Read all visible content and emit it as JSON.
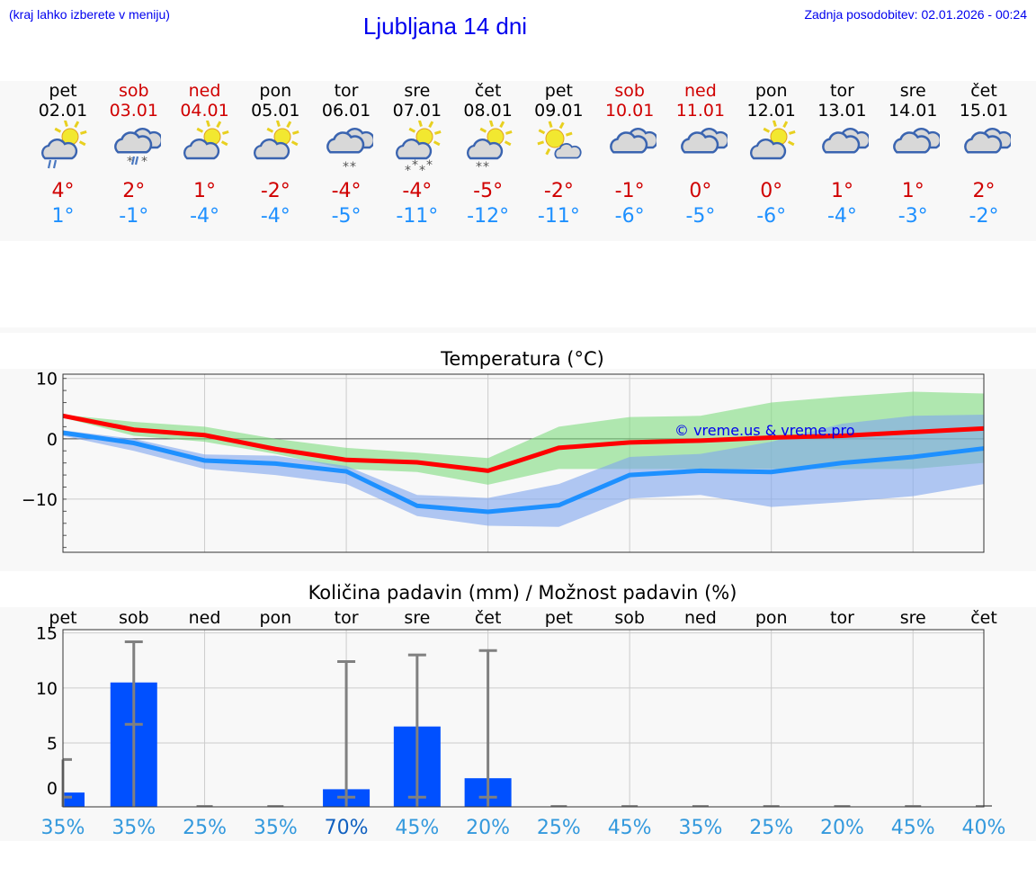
{
  "header": {
    "hint": "(kraj lahko izberete v meniju)",
    "title": "Ljubljana 14 dni",
    "updated": "Zadnja posodobitev: 02.01.2026 - 00:24"
  },
  "days": [
    {
      "name": "pet",
      "date": "02.01",
      "weekend": false,
      "icon": "sun-cloud-rain",
      "max": "4°",
      "min": "1°"
    },
    {
      "name": "sob",
      "date": "03.01",
      "weekend": true,
      "icon": "cloud-sleet",
      "max": "2°",
      "min": "-1°"
    },
    {
      "name": "ned",
      "date": "04.01",
      "weekend": true,
      "icon": "sun-cloud",
      "max": "1°",
      "min": "-4°"
    },
    {
      "name": "pon",
      "date": "05.01",
      "weekend": false,
      "icon": "sun-cloud",
      "max": "-2°",
      "min": "-4°"
    },
    {
      "name": "tor",
      "date": "06.01",
      "weekend": false,
      "icon": "cloud-snow",
      "max": "-4°",
      "min": "-5°"
    },
    {
      "name": "sre",
      "date": "07.01",
      "weekend": false,
      "icon": "sun-cloud-heavy-snow",
      "max": "-4°",
      "min": "-11°"
    },
    {
      "name": "čet",
      "date": "08.01",
      "weekend": false,
      "icon": "sun-cloud-snow",
      "max": "-5°",
      "min": "-12°"
    },
    {
      "name": "pet",
      "date": "09.01",
      "weekend": false,
      "icon": "sun-small-cloud",
      "max": "-2°",
      "min": "-11°"
    },
    {
      "name": "sob",
      "date": "10.01",
      "weekend": true,
      "icon": "cloud",
      "max": "-1°",
      "min": "-6°"
    },
    {
      "name": "ned",
      "date": "11.01",
      "weekend": true,
      "icon": "cloud",
      "max": "0°",
      "min": "-5°"
    },
    {
      "name": "pon",
      "date": "12.01",
      "weekend": false,
      "icon": "sun-cloud",
      "max": "0°",
      "min": "-6°"
    },
    {
      "name": "tor",
      "date": "13.01",
      "weekend": false,
      "icon": "cloud",
      "max": "1°",
      "min": "-4°"
    },
    {
      "name": "sre",
      "date": "14.01",
      "weekend": false,
      "icon": "cloud",
      "max": "1°",
      "min": "-3°"
    },
    {
      "name": "čet",
      "date": "15.01",
      "weekend": false,
      "icon": "cloud",
      "max": "2°",
      "min": "-2°"
    }
  ],
  "colors": {
    "max": "#ff0000",
    "min": "#1e90ff",
    "max_band": "#7fdc7f",
    "min_band": "#7fa5ee",
    "bar": "#0050ff",
    "errorbar": "#808080",
    "weekend": "#d00000",
    "chance": "#3399dd",
    "chance_high": "#1060c0"
  },
  "chart_data": [
    {
      "type": "line",
      "title": "Temperatura (°C)",
      "ylim": [
        -18.8,
        10.7
      ],
      "yticks": [
        "10",
        "0",
        "−10"
      ],
      "ytick_values": [
        10,
        0,
        -10
      ],
      "grid": true,
      "watermark": "© vreme.us & vreme.pro",
      "series": [
        {
          "key": "max",
          "values": [
            3.8,
            1.5,
            0.6,
            -1.7,
            -3.5,
            -3.9,
            -5.3,
            -1.5,
            -0.6,
            -0.3,
            0.2,
            0.5,
            1.1,
            1.7
          ],
          "band_upper": [
            4,
            2.8,
            2,
            0,
            -1.5,
            -2.3,
            -3.2,
            2,
            3.6,
            3.8,
            6,
            7,
            7.8,
            7.5
          ],
          "band_lower": [
            3.5,
            0.5,
            -0.5,
            -2.5,
            -5,
            -5.5,
            -7.6,
            -5,
            -5,
            -5,
            -5,
            -5,
            -5,
            -4
          ]
        },
        {
          "key": "min",
          "values": [
            1,
            -0.7,
            -3.6,
            -4.1,
            -5.4,
            -11.1,
            -12.1,
            -11,
            -6,
            -5.3,
            -5.5,
            -4,
            -3,
            -1.6
          ],
          "band_upper": [
            1.4,
            0,
            -2.6,
            -2.8,
            -4.5,
            -9.3,
            -9.8,
            -7.5,
            -3,
            -2.5,
            -0.5,
            2.5,
            3.8,
            4
          ],
          "band_lower": [
            0.5,
            -2,
            -5,
            -6,
            -7.5,
            -12.8,
            -14.4,
            -14.6,
            -9.9,
            -9.3,
            -11.3,
            -10.5,
            -9.5,
            -7.5
          ]
        }
      ]
    },
    {
      "type": "bar",
      "title": "Količina padavin (mm) / Možnost padavin (%)",
      "ylim": [
        -0.8,
        15.3
      ],
      "yticks": [
        "15",
        "10",
        "5",
        "0"
      ],
      "ytick_values": [
        15,
        10,
        5,
        0
      ],
      "grid": true,
      "categories": [
        "pet",
        "sob",
        "ned",
        "pon",
        "tor",
        "sre",
        "čet",
        "pet",
        "sob",
        "ned",
        "pon",
        "tor",
        "sre",
        "čet"
      ],
      "values": [
        0.5,
        10.5,
        0,
        0,
        0.8,
        6.5,
        1.8,
        0,
        0,
        0,
        0,
        0,
        0,
        0
      ],
      "err_low": [
        0,
        6.7,
        0,
        0,
        0,
        0,
        0,
        0,
        0,
        0,
        0,
        0,
        0,
        0
      ],
      "err_high": [
        3.5,
        14.2,
        0,
        0,
        12.4,
        13.0,
        13.4,
        0,
        0,
        0,
        0,
        0,
        0,
        0
      ],
      "chance": [
        "35%",
        "35%",
        "25%",
        "35%",
        "70%",
        "45%",
        "20%",
        "25%",
        "45%",
        "35%",
        "25%",
        "20%",
        "45%",
        "40%"
      ]
    }
  ]
}
